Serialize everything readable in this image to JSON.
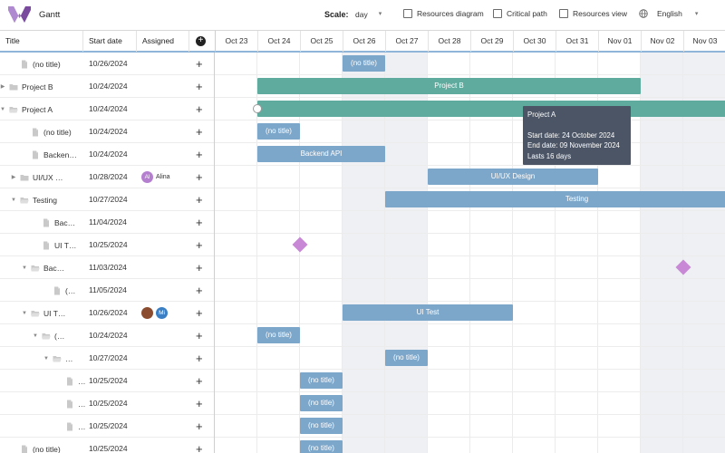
{
  "app": {
    "title": "Gantt",
    "brand_color": "#7a4a9e"
  },
  "toolbar": {
    "scale_label": "Scale:",
    "scale_value": "day",
    "checkboxes": [
      {
        "label": "Resources diagram",
        "checked": false
      },
      {
        "label": "Critical path",
        "checked": false
      },
      {
        "label": "Resources view",
        "checked": false
      }
    ],
    "language": "English",
    "language_icon": "globe-icon"
  },
  "grid": {
    "columns": {
      "title": "Title",
      "start": "Start date",
      "assigned": "Assigned"
    },
    "rows": [
      {
        "title": "(no title)",
        "date": "10/26/2024",
        "assigned": [],
        "type": "file",
        "expand": ""
      },
      {
        "title": "Project B",
        "date": "10/24/2024",
        "assigned": [],
        "type": "folder",
        "expand": "collapsed"
      },
      {
        "title": "Project A",
        "date": "10/24/2024",
        "assigned": [],
        "type": "folder-open",
        "expand": "expanded"
      },
      {
        "title": "(no title)",
        "date": "10/24/2024",
        "assigned": [],
        "type": "file",
        "expand": ""
      },
      {
        "title": "Backen…",
        "date": "10/24/2024",
        "assigned": [],
        "type": "file",
        "expand": ""
      },
      {
        "title": "UI/UX …",
        "date": "10/28/2024",
        "assigned": [
          {
            "initials": "Al",
            "name": "Alina",
            "color": "#b57fd0"
          }
        ],
        "type": "folder",
        "expand": "collapsed"
      },
      {
        "title": "Testing",
        "date": "10/27/2024",
        "assigned": [],
        "type": "folder-open",
        "expand": "expanded"
      },
      {
        "title": "Bac…",
        "date": "11/04/2024",
        "assigned": [],
        "type": "file",
        "expand": ""
      },
      {
        "title": "UI T…",
        "date": "10/25/2024",
        "assigned": [],
        "type": "file",
        "expand": ""
      },
      {
        "title": "Bac…",
        "date": "11/03/2024",
        "assigned": [],
        "type": "folder-open",
        "expand": "expanded"
      },
      {
        "title": "(…",
        "date": "11/05/2024",
        "assigned": [],
        "type": "file",
        "expand": ""
      },
      {
        "title": "UI T…",
        "date": "10/26/2024",
        "assigned": [
          {
            "initials": "",
            "name": "",
            "color": "#8a4b2e"
          },
          {
            "initials": "Mi",
            "name": "",
            "color": "#3a7fc4"
          }
        ],
        "type": "folder-open",
        "expand": "expanded"
      },
      {
        "title": "(…",
        "date": "10/24/2024",
        "assigned": [],
        "type": "folder-open",
        "expand": "expanded"
      },
      {
        "title": "…",
        "date": "10/27/2024",
        "assigned": [],
        "type": "folder-open",
        "expand": "expanded"
      },
      {
        "title": "…",
        "date": "10/25/2024",
        "assigned": [],
        "type": "file",
        "expand": ""
      },
      {
        "title": "…",
        "date": "10/25/2024",
        "assigned": [],
        "type": "file",
        "expand": ""
      },
      {
        "title": "…",
        "date": "10/25/2024",
        "assigned": [],
        "type": "file",
        "expand": ""
      },
      {
        "title": "(no title)",
        "date": "10/25/2024",
        "assigned": [],
        "type": "file",
        "expand": ""
      }
    ]
  },
  "scale": {
    "days": [
      "Oct 23",
      "Oct 24",
      "Oct 25",
      "Oct 26",
      "Oct 27",
      "Oct 28",
      "Oct 29",
      "Oct 30",
      "Oct 31",
      "Nov 01",
      "Nov 02",
      "Nov 03"
    ],
    "weekend_days": [
      "Oct 26",
      "Oct 27",
      "Nov 02",
      "Nov 03"
    ]
  },
  "bars": [
    {
      "row": 0,
      "start": "Oct 26",
      "days": 1,
      "label": "(no title)",
      "kind": "task"
    },
    {
      "row": 1,
      "start": "Oct 24",
      "days": 9,
      "label": "Project B",
      "kind": "project"
    },
    {
      "row": 2,
      "start": "Oct 24",
      "days": 16,
      "label": "",
      "kind": "project"
    },
    {
      "row": 3,
      "start": "Oct 24",
      "days": 1,
      "label": "(no title)",
      "kind": "task"
    },
    {
      "row": 4,
      "start": "Oct 24",
      "days": 3,
      "label": "Backend API",
      "kind": "task"
    },
    {
      "row": 5,
      "start": "Oct 28",
      "days": 4,
      "label": "UI/UX Design",
      "kind": "task"
    },
    {
      "row": 6,
      "start": "Oct 27",
      "days": 9,
      "label": "Testing",
      "kind": "task"
    },
    {
      "row": 11,
      "start": "Oct 26",
      "days": 4,
      "label": "UI Test",
      "kind": "task"
    },
    {
      "row": 12,
      "start": "Oct 24",
      "days": 1,
      "label": "(no title)",
      "kind": "task"
    },
    {
      "row": 13,
      "start": "Oct 27",
      "days": 1,
      "label": "(no title)",
      "kind": "task"
    },
    {
      "row": 14,
      "start": "Oct 25",
      "days": 1,
      "label": "(no title)",
      "kind": "task"
    },
    {
      "row": 15,
      "start": "Oct 25",
      "days": 1,
      "label": "(no title)",
      "kind": "task"
    },
    {
      "row": 16,
      "start": "Oct 25",
      "days": 1,
      "label": "(no title)",
      "kind": "task"
    },
    {
      "row": 17,
      "start": "Oct 25",
      "days": 1,
      "label": "(no title)",
      "kind": "task"
    }
  ],
  "milestones": [
    {
      "row": 8,
      "date": "Oct 25"
    },
    {
      "row": 9,
      "date": "Nov 03"
    }
  ],
  "tooltip": {
    "title": "Project A",
    "start": "Start date: 24 October 2024",
    "end": "End date: 09 November 2024",
    "duration": "Lasts 16 days"
  }
}
